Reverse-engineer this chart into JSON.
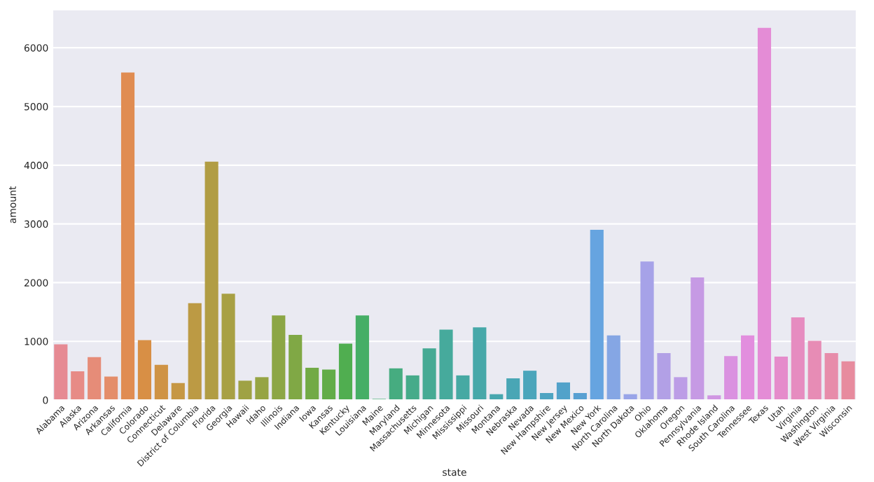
{
  "chart_data": {
    "type": "bar",
    "xlabel": "state",
    "ylabel": "amount",
    "categories": [
      "Alabama",
      "Alaska",
      "Arizona",
      "Arkansas",
      "California",
      "Colorado",
      "Connecticut",
      "Delaware",
      "District of Columbia",
      "Florida",
      "Georgia",
      "Hawaii",
      "Idaho",
      "Illinois",
      "Indiana",
      "Iowa",
      "Kansas",
      "Kentucky",
      "Louisiana",
      "Maine",
      "Maryland",
      "Massachusetts",
      "Michigan",
      "Minnesota",
      "Mississippi",
      "Missouri",
      "Montana",
      "Nebraska",
      "Nevada",
      "New Hampshire",
      "New Jersey",
      "New Mexico",
      "New York",
      "North Carolina",
      "North Dakota",
      "Ohio",
      "Oklahoma",
      "Oregon",
      "Pennsylvania",
      "Rhode Island",
      "South Carolina",
      "Tennessee",
      "Texas",
      "Utah",
      "Virginia",
      "Washington",
      "West Virginia",
      "Wisconsin"
    ],
    "values": [
      950,
      490,
      730,
      400,
      5580,
      1020,
      600,
      290,
      1650,
      4060,
      1810,
      330,
      390,
      1440,
      1110,
      550,
      520,
      960,
      1440,
      20,
      540,
      420,
      880,
      1200,
      420,
      1240,
      100,
      370,
      500,
      120,
      300,
      120,
      2900,
      1100,
      100,
      2360,
      800,
      390,
      2090,
      80,
      750,
      1100,
      6340,
      740,
      1410,
      1010,
      800,
      660
    ],
    "colors": [
      "#e68a93",
      "#e78b86",
      "#e68c78",
      "#e48d6a",
      "#e08c52",
      "#d88f45",
      "#cf9345",
      "#c69744",
      "#bc9a44",
      "#b19d44",
      "#a8a044",
      "#9fa244",
      "#96a444",
      "#8ca645",
      "#80a845",
      "#72aa46",
      "#62ac48",
      "#50ae50",
      "#46ae66",
      "#46ad74",
      "#46ac80",
      "#46ab8a",
      "#46aa94",
      "#46aa9c",
      "#46a9a3",
      "#47a8a9",
      "#48a7af",
      "#49a6b5",
      "#4ba5bb",
      "#4ea4c2",
      "#52a2ca",
      "#58a0d2",
      "#66a4e0",
      "#85a6e4",
      "#99a4e8",
      "#a6a2e8",
      "#b2a0e6",
      "#bc9de6",
      "#c69ae4",
      "#d096e2",
      "#da92e0",
      "#e28ede",
      "#e48cd6",
      "#e58ccb",
      "#e68cc0",
      "#e78cb5",
      "#e78caa",
      "#e78b9e"
    ],
    "ylim": [
      0,
      6650
    ],
    "yticks": [
      0,
      1000,
      2000,
      3000,
      4000,
      5000,
      6000
    ],
    "grid": "y",
    "legend": false
  }
}
